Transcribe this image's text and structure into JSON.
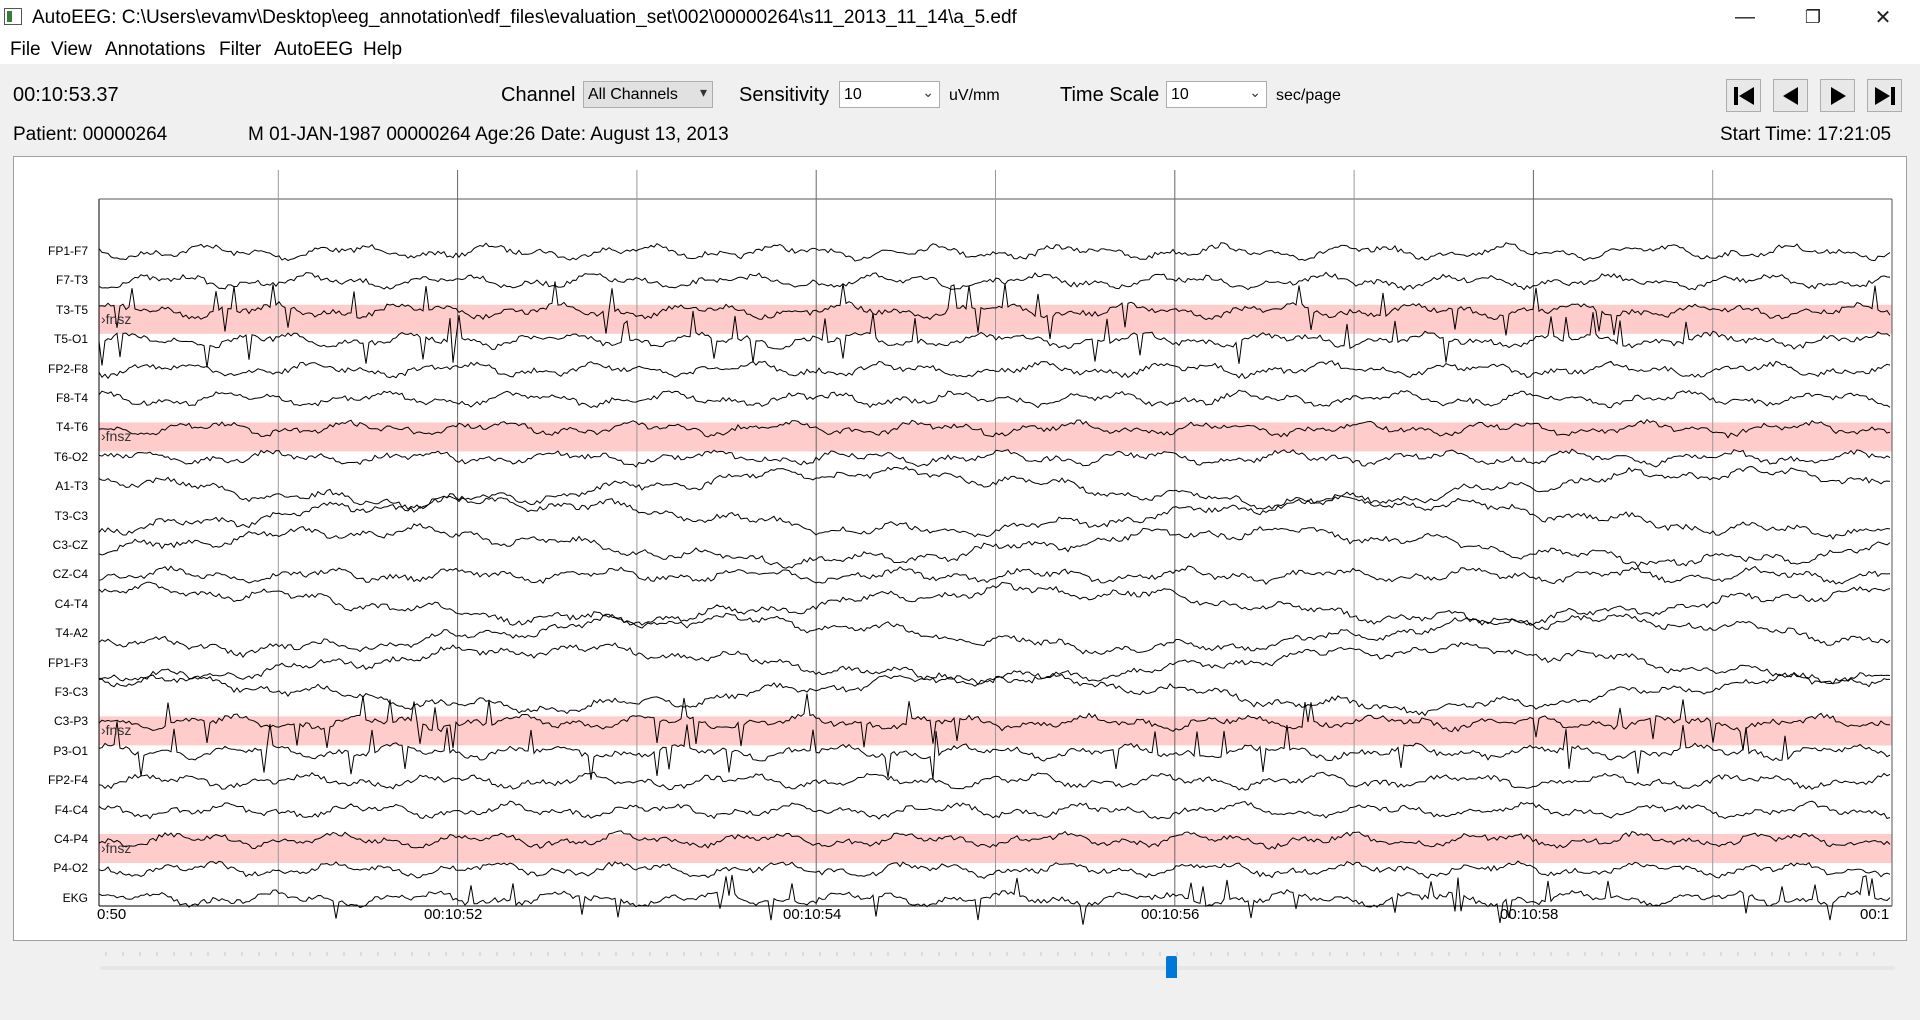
{
  "window": {
    "title": "AutoEEG:   C:\\Users\\evamv\\Desktop\\eeg_annotation\\edf_files\\evaluation_set\\002\\00000264\\s11_2013_11_14\\a_5.edf",
    "minimize_label": "—",
    "restore_label": "❐",
    "close_label": "✕"
  },
  "menu": [
    "File",
    "View",
    "Annotations",
    "Filter",
    "AutoEEG",
    "Help"
  ],
  "toolbar": {
    "current_time": "00:10:53.37",
    "channel_label": "Channel",
    "channel_value": "All Channels",
    "sensitivity_label": "Sensitivity",
    "sensitivity_value": "10",
    "sensitivity_unit": "uV/mm",
    "timescale_label": "Time Scale",
    "timescale_value": "10",
    "timescale_unit": "sec/page",
    "nav_icons": [
      "skip-to-start-icon",
      "previous-page-icon",
      "next-page-icon",
      "skip-to-end-icon"
    ]
  },
  "patient": {
    "patient_id": "Patient: 00000264",
    "details": "M 01-JAN-1987 00000264 Age:26  Date: August 13, 2013",
    "start_time": "Start Time: 17:21:05"
  },
  "channels": [
    "FP1-F7",
    "F7-T3",
    "T3-T5",
    "T5-O1",
    "FP2-F8",
    "F8-T4",
    "T4-T6",
    "T6-O2",
    "A1-T3",
    "T3-C3",
    "C3-CZ",
    "CZ-C4",
    "C4-T4",
    "T4-A2",
    "FP1-F3",
    "F3-C3",
    "C3-P3",
    "P3-O1",
    "FP2-F4",
    "F4-C4",
    "C4-P4",
    "P4-O2",
    "EKG"
  ],
  "time_axis": [
    "0:50",
    "00:10:52",
    "00:10:54",
    "00:10:56",
    "00:10:58",
    "00:1"
  ],
  "annotations": [
    {
      "channel": "T3-T5",
      "label": "fnsz"
    },
    {
      "channel": "T4-T6",
      "label": "fnsz"
    },
    {
      "channel": "C3-P3",
      "label": "fnsz"
    },
    {
      "channel": "C4-P4",
      "label": "fnsz"
    }
  ],
  "colors": {
    "annotation_band": "#ffcccc",
    "trace": "#000000",
    "scroll_handle": "#0078d7"
  },
  "scroll": {
    "position_fraction": 0.6
  }
}
